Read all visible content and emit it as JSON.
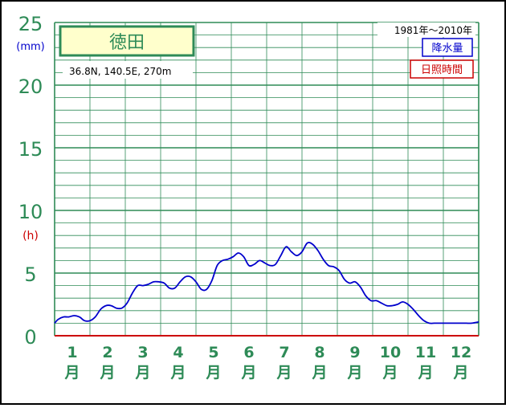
{
  "chart_data": {
    "type": "line",
    "station": "徳田",
    "coords": "36.8N,  140.5E,  270m",
    "period": "1981年〜2010年",
    "legend": [
      "降水量",
      "日照時間"
    ],
    "unit_precip": "(mm)",
    "unit_sun": "(h)",
    "yticks": [
      "0",
      "5",
      "10",
      "15",
      "20",
      "25"
    ],
    "ylim": [
      0,
      25
    ],
    "xticks": [
      {
        "num": "1",
        "unit": "月"
      },
      {
        "num": "2",
        "unit": "月"
      },
      {
        "num": "3",
        "unit": "月"
      },
      {
        "num": "4",
        "unit": "月"
      },
      {
        "num": "5",
        "unit": "月"
      },
      {
        "num": "6",
        "unit": "月"
      },
      {
        "num": "7",
        "unit": "月"
      },
      {
        "num": "8",
        "unit": "月"
      },
      {
        "num": "9",
        "unit": "月"
      },
      {
        "num": "10",
        "unit": "月"
      },
      {
        "num": "11",
        "unit": "月"
      },
      {
        "num": "12",
        "unit": "月"
      }
    ],
    "xlim": [
      0.5,
      12.5
    ],
    "series": [
      {
        "name": "降水量",
        "color": "#0000cc",
        "x": [
          0.5,
          0.6,
          0.75,
          0.9,
          1.05,
          1.2,
          1.35,
          1.5,
          1.65,
          1.8,
          1.95,
          2.1,
          2.25,
          2.4,
          2.55,
          2.7,
          2.85,
          3.0,
          3.15,
          3.3,
          3.45,
          3.6,
          3.75,
          3.9,
          4.05,
          4.2,
          4.35,
          4.5,
          4.65,
          4.8,
          4.95,
          5.1,
          5.25,
          5.4,
          5.55,
          5.7,
          5.85,
          6.0,
          6.15,
          6.3,
          6.45,
          6.6,
          6.75,
          6.9,
          7.05,
          7.2,
          7.35,
          7.5,
          7.65,
          7.8,
          7.95,
          8.1,
          8.25,
          8.4,
          8.55,
          8.7,
          8.85,
          9.0,
          9.15,
          9.3,
          9.45,
          9.6,
          9.75,
          9.9,
          10.05,
          10.2,
          10.35,
          10.5,
          10.65,
          10.8,
          10.95,
          11.1,
          11.25,
          11.4,
          11.55,
          11.7,
          11.85,
          12.0,
          12.15,
          12.3,
          12.5
        ],
        "values": [
          1.0,
          1.3,
          1.5,
          1.5,
          1.6,
          1.5,
          1.2,
          1.2,
          1.5,
          2.1,
          2.4,
          2.4,
          2.2,
          2.2,
          2.6,
          3.4,
          4.0,
          4.0,
          4.1,
          4.3,
          4.3,
          4.2,
          3.8,
          3.8,
          4.3,
          4.7,
          4.7,
          4.3,
          3.7,
          3.7,
          4.4,
          5.6,
          6.0,
          6.1,
          6.3,
          6.6,
          6.3,
          5.6,
          5.7,
          6.0,
          5.8,
          5.6,
          5.7,
          6.4,
          7.1,
          6.7,
          6.4,
          6.7,
          7.4,
          7.3,
          6.8,
          6.1,
          5.6,
          5.5,
          5.2,
          4.5,
          4.2,
          4.3,
          3.9,
          3.2,
          2.8,
          2.8,
          2.6,
          2.4,
          2.4,
          2.5,
          2.7,
          2.5,
          2.1,
          1.6,
          1.2,
          1.0,
          1.0,
          1.0,
          1.0,
          1.0,
          1.0,
          1.0,
          1.0,
          1.0,
          1.1
        ]
      }
    ],
    "grid": true
  },
  "colors": {
    "grid": "#2e8b57",
    "precip": "#0000cc",
    "sun": "#cc0000",
    "station_bg": "#ffffcc"
  }
}
